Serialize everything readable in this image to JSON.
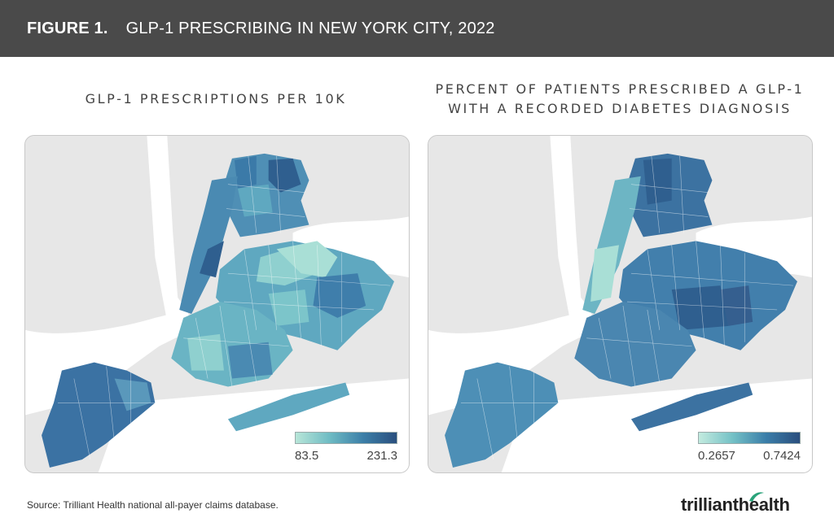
{
  "header": {
    "figure_number": "FIGURE 1.",
    "figure_title": "GLP-1 PRESCRIBING IN NEW YORK CITY, 2022"
  },
  "panels": [
    {
      "title": "GLP-1 PRESCRIPTIONS PER 10K",
      "legend": {
        "min": "83.5",
        "max": "231.3"
      },
      "colors": {
        "low": "#b8e6d8",
        "high": "#2a4f7e"
      }
    },
    {
      "title_line1": "PERCENT OF PATIENTS PRESCRIBED A GLP-1",
      "title_line2": "WITH A RECORDED DIABETES DIAGNOSIS",
      "legend": {
        "min": "0.2657",
        "max": "0.7424"
      },
      "colors": {
        "low": "#c3ebdf",
        "high": "#2a4e7d"
      }
    }
  ],
  "source": "Source: Trilliant Health national all-payer claims database.",
  "logo": {
    "part1": "trilliant",
    "part2": "health"
  },
  "map_colors": {
    "land": "#e7e7e7",
    "water": "#ffffff"
  }
}
